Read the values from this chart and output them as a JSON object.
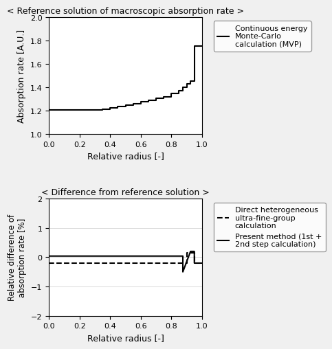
{
  "title1": "< Reference solution of macroscopic absorption rate >",
  "title2": "< Difference from reference solution >",
  "xlabel": "Relative radius [-]",
  "ylabel1": "Absorption rate [A.U.]",
  "ylabel2": "Relative difference of\nabsorption rate [%]",
  "ylim1": [
    1.0,
    2.0
  ],
  "ylim2": [
    -2,
    2
  ],
  "xlim": [
    0.0,
    1.0
  ],
  "xticks": [
    0.0,
    0.2,
    0.4,
    0.6,
    0.8,
    1.0
  ],
  "yticks1": [
    1.0,
    1.2,
    1.4,
    1.6,
    1.8,
    2.0
  ],
  "yticks2": [
    -2,
    -1,
    0,
    1,
    2
  ],
  "mvp_x": [
    0.0,
    0.3,
    0.35,
    0.4,
    0.45,
    0.5,
    0.55,
    0.6,
    0.65,
    0.7,
    0.75,
    0.8,
    0.85,
    0.875,
    0.9,
    0.925,
    0.95,
    1.0
  ],
  "mvp_y": [
    1.205,
    1.205,
    1.215,
    1.225,
    1.235,
    1.248,
    1.262,
    1.275,
    1.29,
    1.305,
    1.32,
    1.345,
    1.37,
    1.4,
    1.43,
    1.455,
    1.755,
    1.755
  ],
  "diff_dashed_x": [
    0.0,
    0.9,
    0.9,
    0.95,
    0.95,
    1.0
  ],
  "diff_dashed_y": [
    -0.2,
    -0.2,
    0.15,
    0.15,
    -0.2,
    -0.2
  ],
  "diff_solid_x": [
    0.0,
    0.875,
    0.875,
    0.925,
    0.925,
    0.95,
    0.95,
    1.0
  ],
  "diff_solid_y": [
    0.04,
    0.04,
    -0.5,
    0.2,
    0.2,
    0.2,
    -0.2,
    -0.2
  ],
  "legend1_label": "Continuous energy\nMonte-Carlo\ncalculation (MVP)",
  "legend2_label1": "Direct heterogeneous\nultra-fine-group\ncalculation",
  "legend2_label2": "Present method (1st +\n2nd step calculation)",
  "line_color": "#000000",
  "bg_color": "#f0f0f0",
  "plot_bg": "#ffffff"
}
